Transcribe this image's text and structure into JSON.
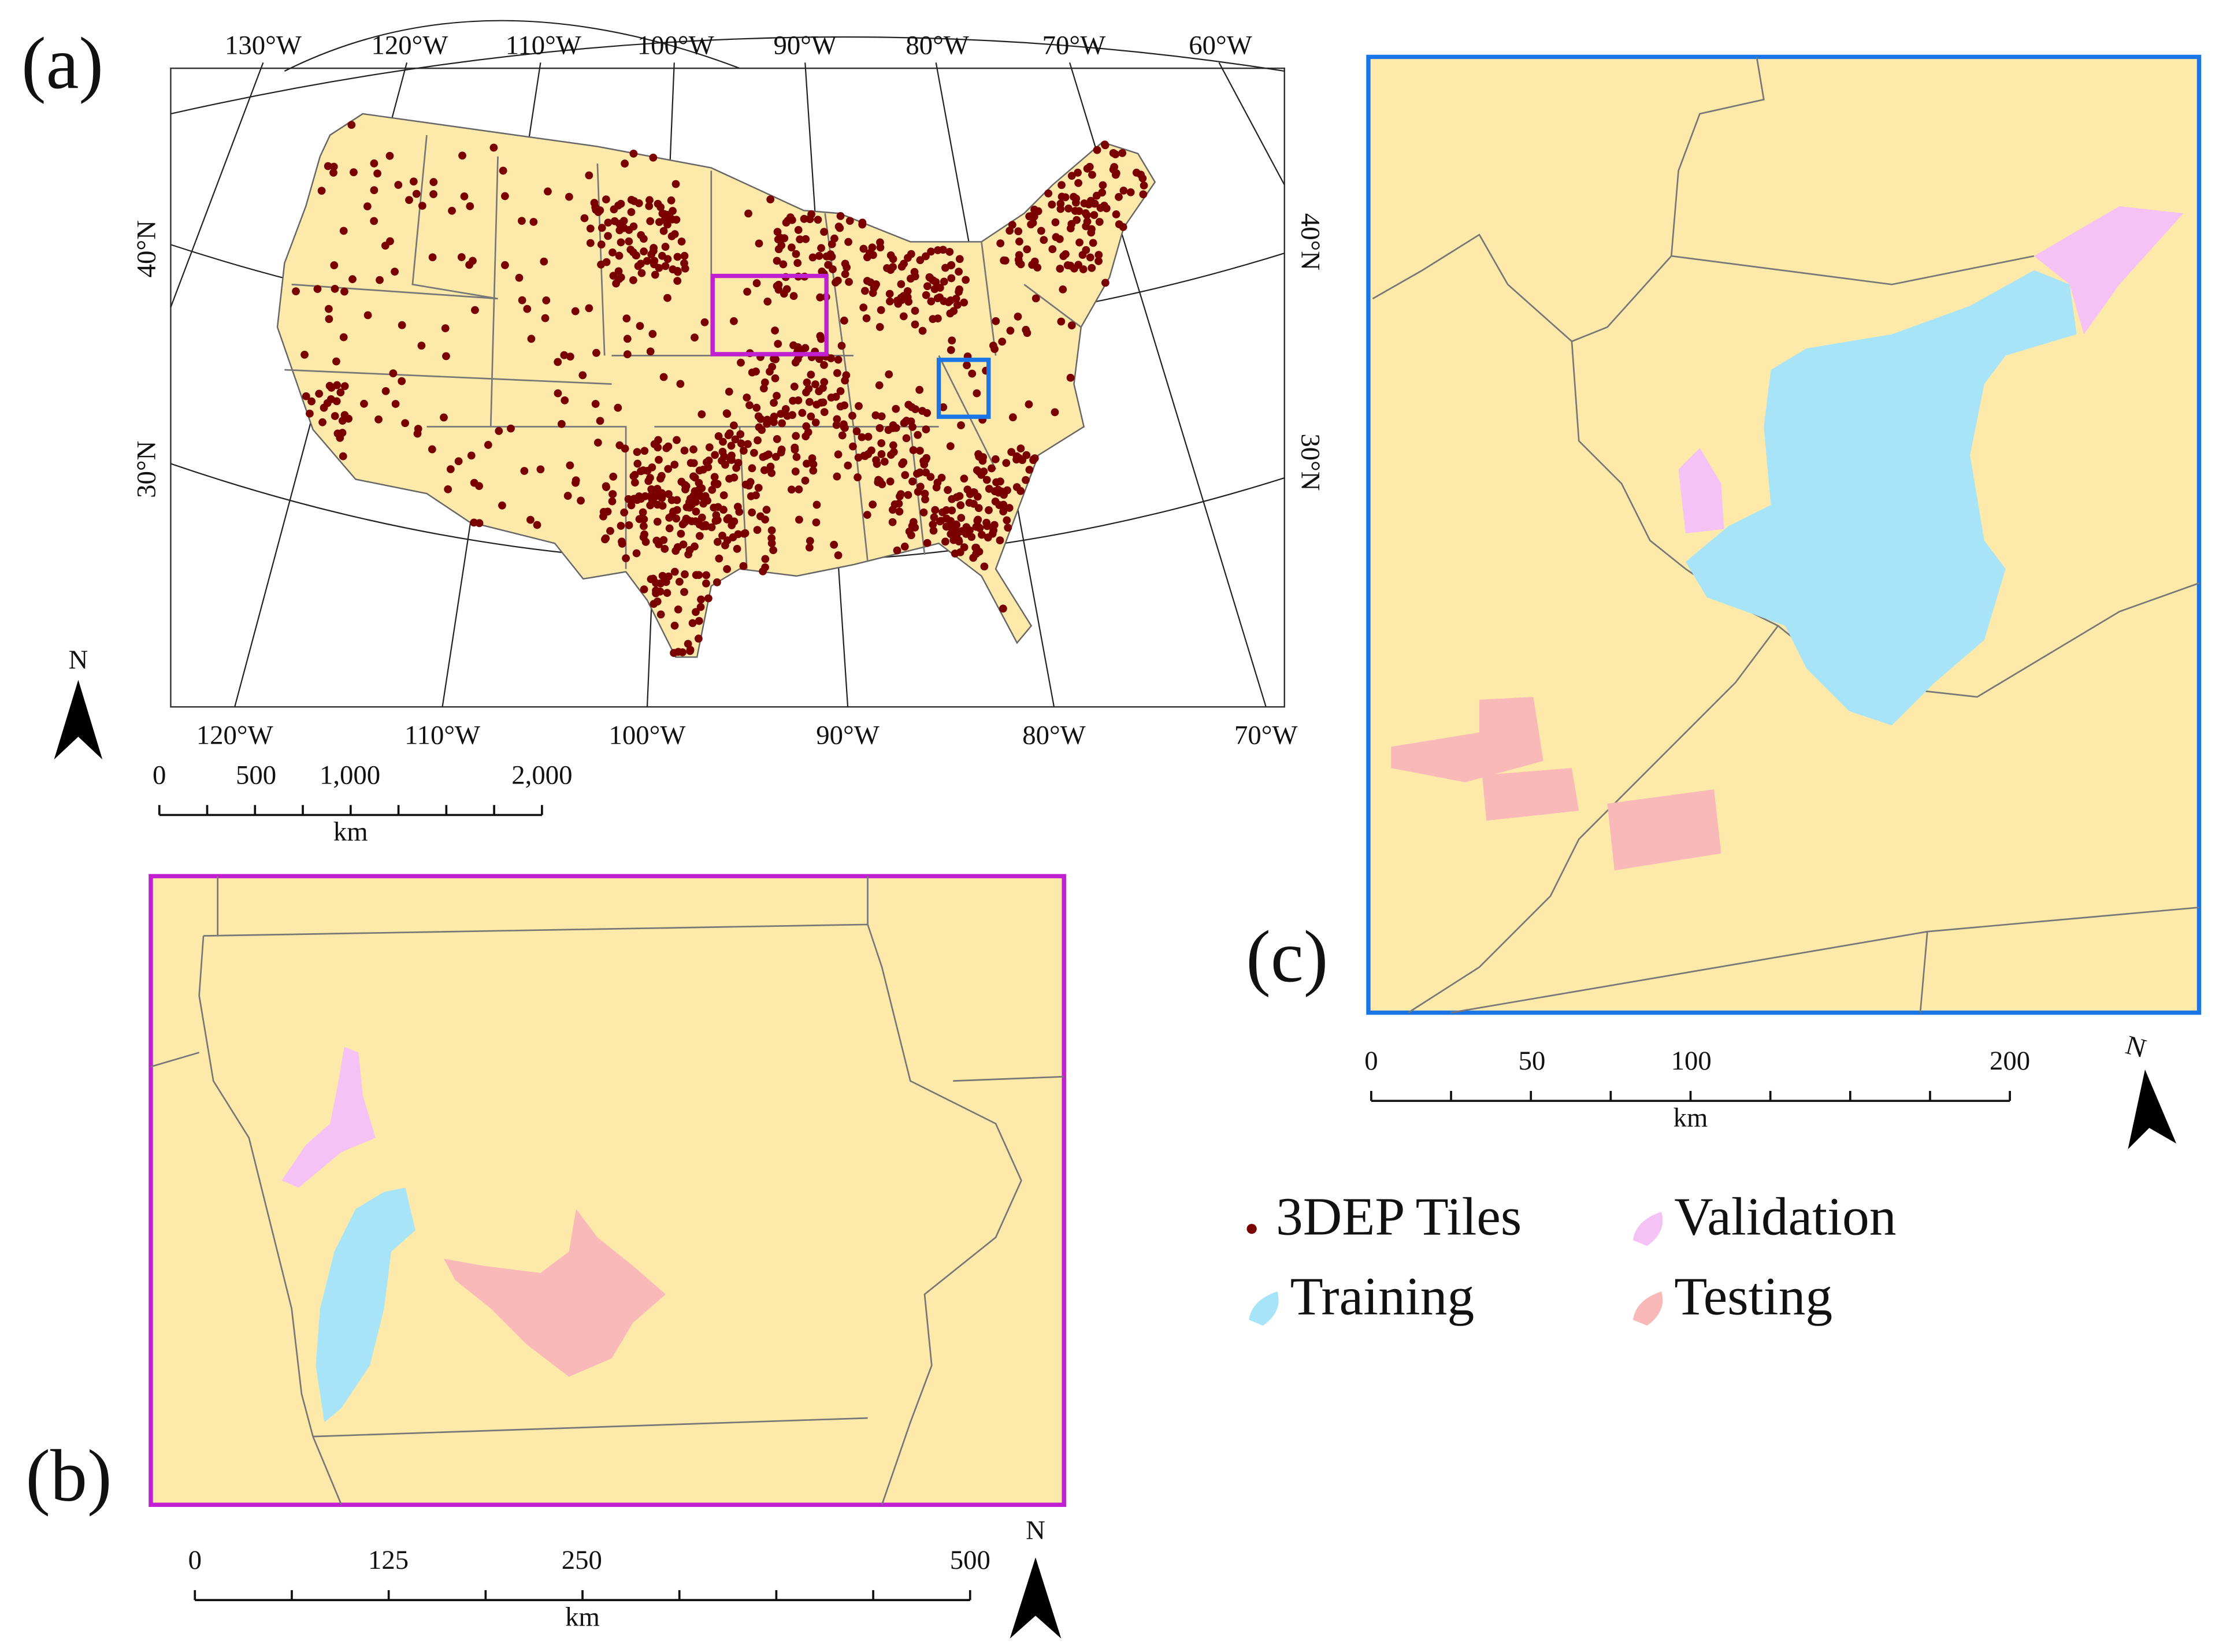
{
  "panels": {
    "a": {
      "label": "(a)",
      "top_longitudes": [
        "130°W",
        "120°W",
        "110°W",
        "100°W",
        "90°W",
        "80°W",
        "70°W",
        "60°W"
      ],
      "bottom_longitudes": [
        "120°W",
        "110°W",
        "100°W",
        "90°W",
        "80°W",
        "70°W"
      ],
      "left_latitudes": [
        "40°N",
        "30°N"
      ],
      "right_latitudes": [
        "40°N",
        "30°N"
      ],
      "scale": {
        "ticks": [
          "0",
          "500",
          "1,000",
          "2,000"
        ],
        "unit": "km"
      },
      "north": "N"
    },
    "b": {
      "label": "(b)",
      "scale": {
        "ticks": [
          "0",
          "125",
          "250",
          "500"
        ],
        "unit": "km"
      },
      "north": "N"
    },
    "c": {
      "label": "(c)",
      "scale": {
        "ticks": [
          "0",
          "50",
          "100",
          "200"
        ],
        "unit": "km"
      },
      "north": "N"
    }
  },
  "legend": [
    {
      "label": "3DEP Tiles"
    },
    {
      "label": "Validation"
    },
    {
      "label": "Training"
    },
    {
      "label": "Testing"
    }
  ]
}
